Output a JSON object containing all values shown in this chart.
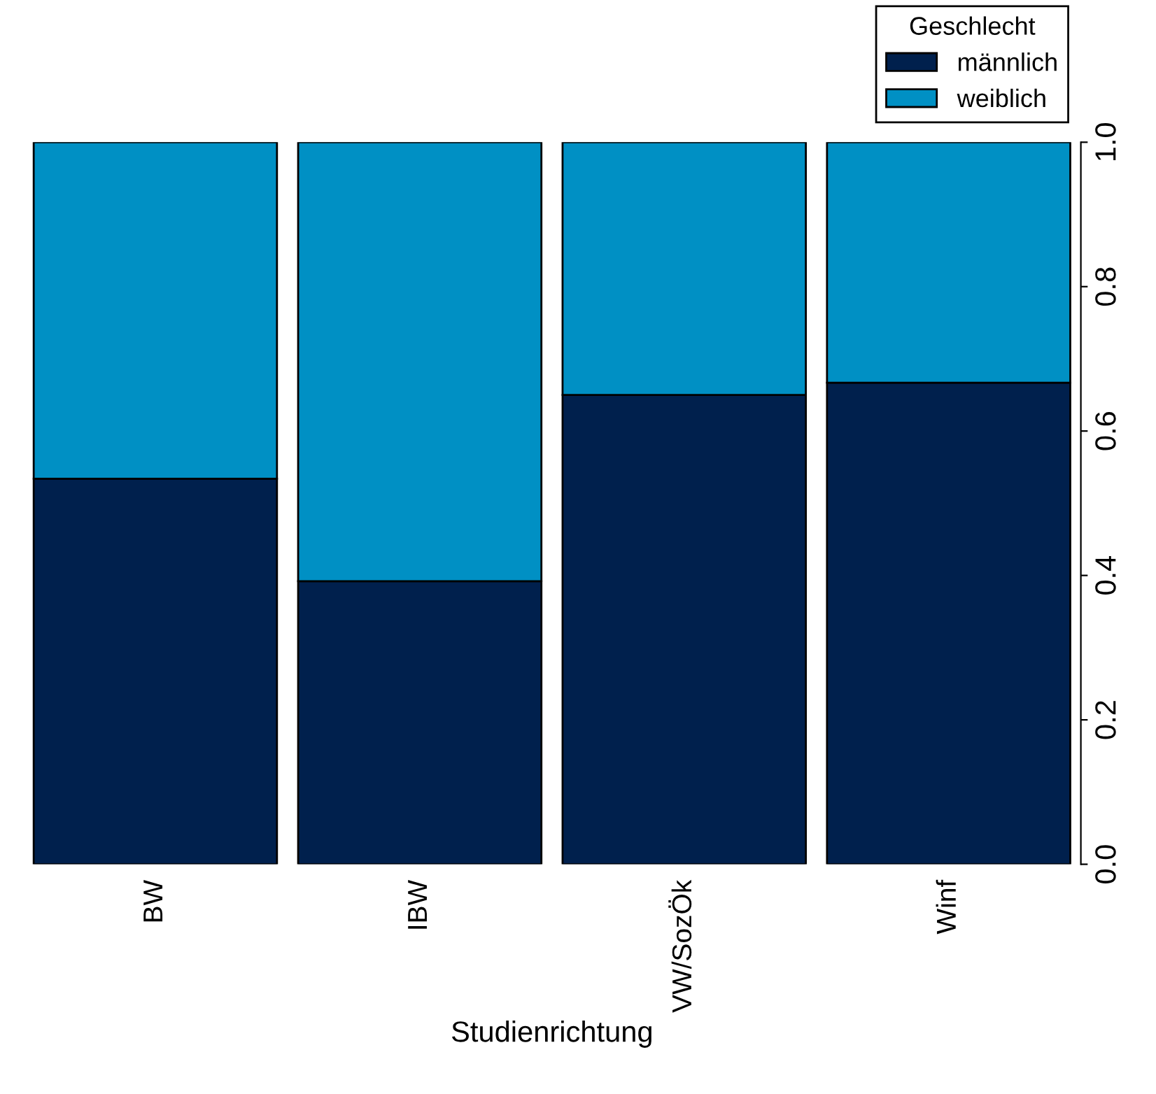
{
  "chart_data": {
    "type": "bar",
    "stacked": true,
    "xlabel": "Studienrichtung",
    "legend_title": "Geschlecht",
    "legend": "top right",
    "categories": [
      "BW",
      "IBW",
      "VW/SozÖk",
      "Winf"
    ],
    "series": [
      {
        "name": "männlich",
        "color": "#00204d",
        "values": [
          0.534,
          0.392,
          0.65,
          0.667
        ]
      },
      {
        "name": "weiblich",
        "color": "#0090c4",
        "values": [
          0.466,
          0.608,
          0.35,
          0.333
        ]
      }
    ],
    "ylim": [
      0,
      1
    ],
    "yticks": [
      {
        "value": 0,
        "label": "0.0"
      },
      0.2,
      0.4,
      0.6,
      0.8,
      {
        "value": 1,
        "label": "1.0"
      }
    ],
    "grid": false
  }
}
